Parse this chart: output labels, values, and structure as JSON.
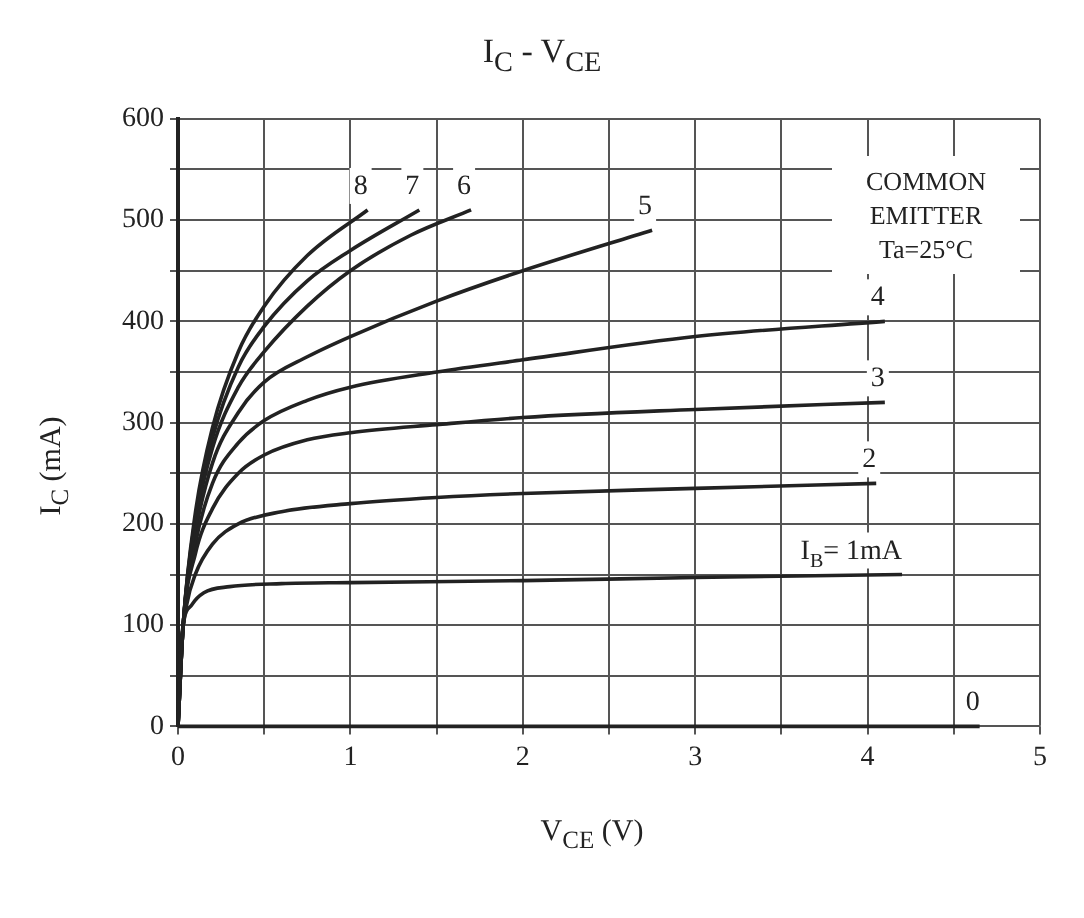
{
  "chart_data": {
    "type": "line",
    "title": "I$_{C}$ - V$_{CE}$",
    "xlabel": "V$_{CE}$  (V)",
    "ylabel": "I$_{C}$  (mA)",
    "annotations": [
      "COMMON EMITTER Ta=25°C"
    ],
    "xlim": [
      0,
      5
    ],
    "ylim": [
      0,
      600
    ],
    "xticks": [
      0,
      {
        "value": 0.5,
        "label": null
      },
      1,
      {
        "value": 1.5,
        "label": null
      },
      2,
      {
        "value": 2.5,
        "label": null
      },
      3,
      {
        "value": 3.5,
        "label": null
      },
      4,
      {
        "value": 4.5,
        "label": null
      },
      5
    ],
    "yticks": [
      0,
      {
        "value": 50,
        "label": null
      },
      100,
      {
        "value": 150,
        "label": null
      },
      200,
      {
        "value": 250,
        "label": null
      },
      300,
      {
        "value": 350,
        "label": null
      },
      400,
      {
        "value": 450,
        "label": null
      },
      500,
      {
        "value": 550,
        "label": null
      },
      600
    ],
    "grid": true,
    "marker": "none",
    "line_style": "solid",
    "series": [
      {
        "name": "0",
        "color": "#222222",
        "x": [
          0,
          4.65
        ],
        "values": [
          0,
          0
        ]
      },
      {
        "name": "I$_{B}$= 1mA",
        "color": "#222222",
        "x": [
          0,
          0.01,
          0.03,
          0.08,
          0.15,
          0.3,
          0.6,
          1,
          2,
          3,
          4.2
        ],
        "values": [
          0,
          60,
          100,
          120,
          132,
          138,
          141,
          142,
          144,
          147,
          150
        ]
      },
      {
        "name": "2",
        "color": "#222222",
        "x": [
          0,
          0.02,
          0.05,
          0.1,
          0.2,
          0.35,
          0.6,
          1,
          1.5,
          2,
          3,
          4.05
        ],
        "values": [
          0,
          80,
          120,
          150,
          180,
          200,
          212,
          220,
          226,
          230,
          235,
          240
        ]
      },
      {
        "name": "3",
        "color": "#222222",
        "x": [
          0,
          0.03,
          0.1,
          0.2,
          0.35,
          0.5,
          0.75,
          1,
          1.5,
          2,
          3,
          4.1
        ],
        "values": [
          0,
          100,
          170,
          215,
          250,
          268,
          283,
          290,
          298,
          305,
          313,
          320
        ]
      },
      {
        "name": "4",
        "color": "#222222",
        "x": [
          0,
          0.03,
          0.1,
          0.2,
          0.35,
          0.5,
          0.75,
          1,
          1.5,
          2,
          3,
          4.1
        ],
        "values": [
          0,
          100,
          180,
          240,
          280,
          302,
          322,
          335,
          350,
          362,
          385,
          400
        ]
      },
      {
        "name": "5",
        "color": "#222222",
        "x": [
          0,
          0.03,
          0.1,
          0.2,
          0.35,
          0.5,
          0.75,
          1,
          1.5,
          2,
          2.75
        ],
        "values": [
          0,
          100,
          190,
          260,
          310,
          340,
          365,
          385,
          420,
          450,
          490
        ]
      },
      {
        "name": "6",
        "color": "#222222",
        "x": [
          0,
          0.03,
          0.1,
          0.2,
          0.35,
          0.5,
          0.75,
          1,
          1.35,
          1.7
        ],
        "values": [
          0,
          100,
          200,
          275,
          335,
          370,
          415,
          450,
          485,
          510
        ]
      },
      {
        "name": "7",
        "color": "#222222",
        "x": [
          0,
          0.03,
          0.1,
          0.2,
          0.35,
          0.5,
          0.75,
          1,
          1.4
        ],
        "values": [
          0,
          100,
          205,
          285,
          355,
          395,
          440,
          470,
          510
        ]
      },
      {
        "name": "8",
        "color": "#222222",
        "x": [
          0,
          0.03,
          0.1,
          0.2,
          0.35,
          0.5,
          0.75,
          1.1
        ],
        "values": [
          0,
          100,
          210,
          295,
          370,
          415,
          465,
          510
        ]
      }
    ]
  }
}
